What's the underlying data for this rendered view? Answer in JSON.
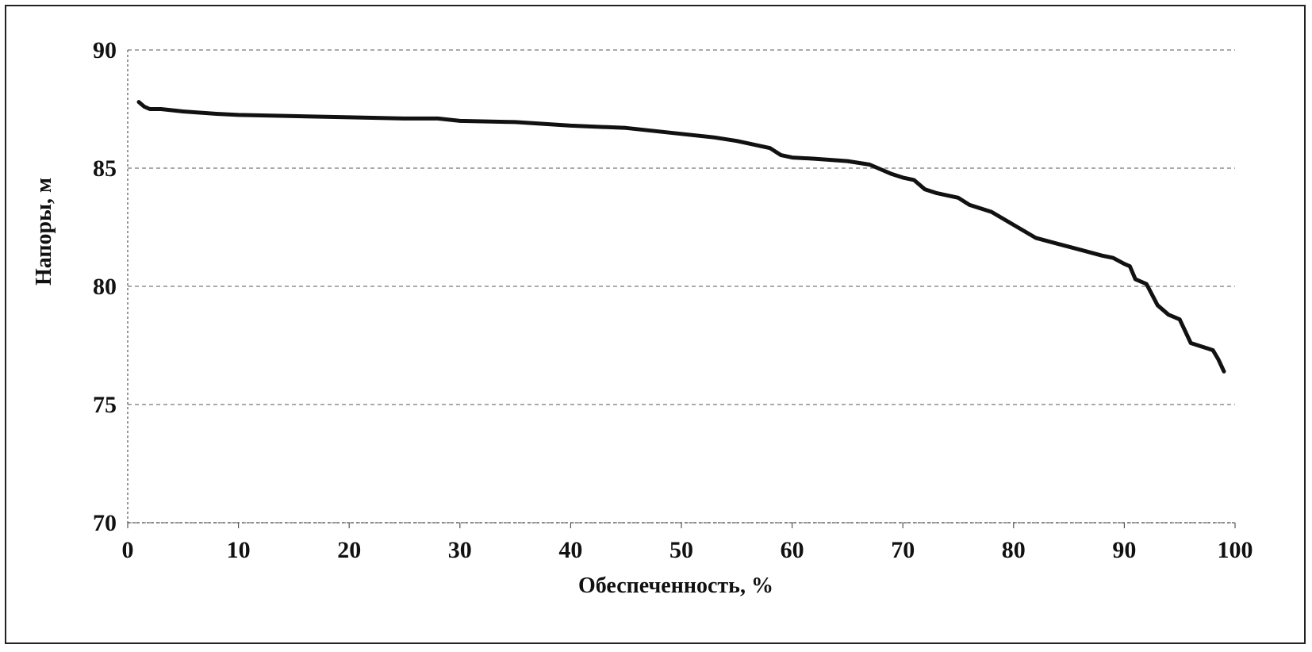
{
  "chart_data": {
    "type": "line",
    "xlabel": "Обеспеченность, %",
    "ylabel": "Напоры, м",
    "xlim": [
      0,
      100
    ],
    "ylim": [
      70,
      90
    ],
    "xticks": [
      "0",
      "10",
      "20",
      "30",
      "40",
      "50",
      "60",
      "70",
      "80",
      "90",
      "100"
    ],
    "yticks": [
      "70",
      "75",
      "80",
      "85",
      "90"
    ],
    "grid": true,
    "series_color": "#111111",
    "series": [
      {
        "x": [
          1,
          1.5,
          2,
          3,
          5,
          8,
          10,
          15,
          20,
          25,
          28,
          30,
          35,
          40,
          45,
          48,
          50,
          53,
          55,
          56,
          57,
          58,
          59,
          60,
          62,
          65,
          67,
          68,
          69,
          70,
          71,
          72,
          73,
          74,
          75,
          76,
          78,
          80,
          82,
          84,
          86,
          88,
          89,
          90,
          90.5,
          91,
          92,
          93,
          94,
          94.5,
          95,
          96,
          97,
          98,
          98.5,
          99
        ],
        "y": [
          87.8,
          87.6,
          87.5,
          87.5,
          87.4,
          87.3,
          87.25,
          87.2,
          87.15,
          87.1,
          87.1,
          87.0,
          86.95,
          86.8,
          86.7,
          86.55,
          86.45,
          86.3,
          86.15,
          86.05,
          85.95,
          85.85,
          85.55,
          85.45,
          85.4,
          85.3,
          85.15,
          84.95,
          84.75,
          84.6,
          84.5,
          84.1,
          83.95,
          83.85,
          83.75,
          83.45,
          83.15,
          82.6,
          82.05,
          81.8,
          81.55,
          81.3,
          81.2,
          80.95,
          80.85,
          80.3,
          80.1,
          79.2,
          78.8,
          78.7,
          78.6,
          77.6,
          77.45,
          77.3,
          76.9,
          76.4
        ]
      }
    ]
  }
}
